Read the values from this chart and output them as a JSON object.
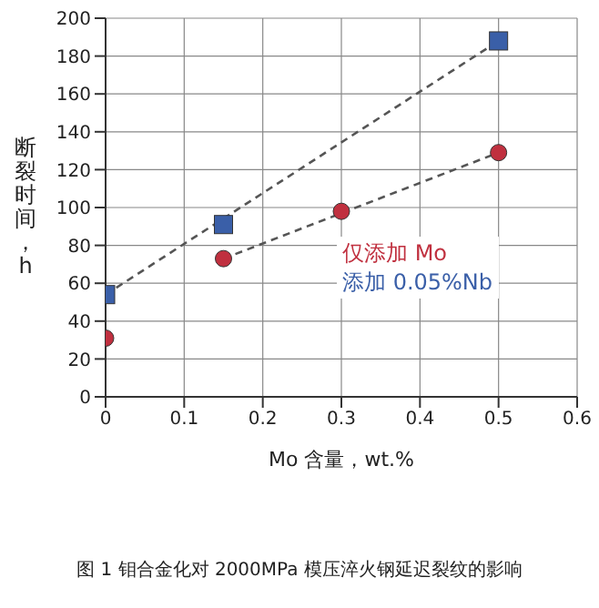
{
  "chart_data": {
    "type": "scatter",
    "xlabel": "Mo 含量，wt.%",
    "ylabel": "断裂时间，h",
    "xlim": [
      0,
      0.6
    ],
    "xticks": [
      0,
      0.1,
      0.2,
      0.3,
      0.4,
      0.5,
      0.6
    ],
    "ylim": [
      0,
      200
    ],
    "yticks": [
      0,
      20,
      40,
      60,
      80,
      100,
      120,
      140,
      160,
      180,
      200
    ],
    "grid": true,
    "legend": "right",
    "series": [
      {
        "name": "仅添加 Mo",
        "type": "scatter",
        "color": "#c0303f",
        "marker": "circle",
        "x": [
          0,
          0.15,
          0.3,
          0.5
        ],
        "values": [
          31,
          73,
          98,
          129
        ]
      },
      {
        "name": "添加 0.05%Nb",
        "type": "scatter",
        "color": "#3a5fa8",
        "marker": "square",
        "x": [
          0,
          0.15,
          0.5
        ],
        "values": [
          54,
          91,
          188
        ]
      },
      {
        "type": "line",
        "color": "#555555",
        "line_style": "dashed",
        "marker": "none",
        "x": [
          0.15,
          0.5
        ],
        "values": [
          73,
          129
        ]
      },
      {
        "type": "line",
        "color": "#555555",
        "line_style": "dashed",
        "marker": "none",
        "x": [
          0,
          0.5
        ],
        "values": [
          54,
          188
        ]
      }
    ],
    "annotations": [
      "图 1 钼合金化对 2000MPa 模压淬火钢延迟裂纹的影响"
    ]
  }
}
